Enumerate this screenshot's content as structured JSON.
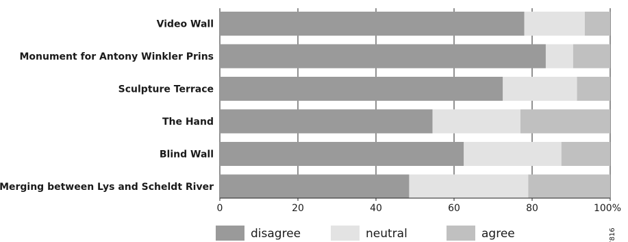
{
  "chart_data": {
    "type": "bar",
    "orientation": "horizontal",
    "stacked": true,
    "percent": true,
    "categories": [
      "Video Wall",
      "Monument for Antony Winkler Prins",
      "Sculpture Terrace",
      "The Hand",
      "Blind Wall",
      "Merging between Lys and Scheldt River"
    ],
    "series": [
      {
        "name": "disagree",
        "color": "#9a9a9a",
        "values": [
          78,
          83.5,
          72.5,
          54.5,
          62.5,
          48.5
        ]
      },
      {
        "name": "neutral",
        "color": "#e3e3e3",
        "values": [
          15.5,
          7,
          19,
          22.5,
          25,
          30.5
        ]
      },
      {
        "name": "agree",
        "color": "#c0c0c0",
        "values": [
          6.5,
          9.5,
          8.5,
          23,
          12.5,
          21
        ]
      }
    ],
    "x_ticks": [
      "0",
      "20",
      "40",
      "60",
      "80",
      "100%"
    ],
    "xlim": [
      0,
      100
    ],
    "grid": "vertical",
    "legend": "bottom",
    "figure_id": "7816"
  }
}
